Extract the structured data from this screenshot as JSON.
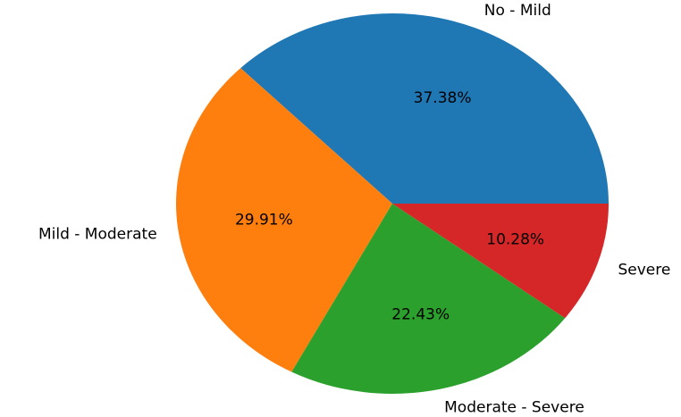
{
  "chart_data": {
    "type": "pie",
    "categories": [
      "No - Mild",
      "Mild - Moderate",
      "Moderate - Severe",
      "Severe"
    ],
    "values": [
      37.38,
      29.91,
      22.43,
      10.28
    ],
    "value_labels": [
      "37.38%",
      "29.91%",
      "22.43%",
      "10.28%"
    ],
    "colors": [
      "#1f77b4",
      "#ff7f0e",
      "#2ca02c",
      "#d62728"
    ]
  }
}
